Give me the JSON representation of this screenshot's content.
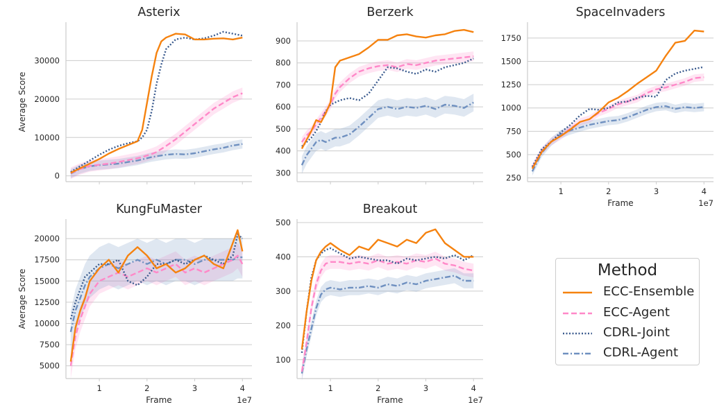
{
  "legend": {
    "title": "Method",
    "entries": [
      {
        "label": "ECC-Ensemble",
        "color": "#f5820f",
        "style": "solid"
      },
      {
        "label": "ECC-Agent",
        "color": "#ff88c8",
        "style": "dashed"
      },
      {
        "label": "CDRL-Joint",
        "color": "#3b5b8e",
        "style": "dotted"
      },
      {
        "label": "CDRL-Agent",
        "color": "#6f90c0",
        "style": "dashdot"
      }
    ]
  },
  "chart_data": [
    {
      "type": "line",
      "title": "Asterix",
      "xlabel": "",
      "ylabel": "Average Score",
      "xlim": [
        0.3,
        4.2
      ],
      "ylim": [
        -1500,
        40000
      ],
      "yticks": [
        0,
        10000,
        20000,
        30000
      ],
      "xticks": [
        1,
        2,
        3,
        4
      ],
      "show_xticklabels": false,
      "grid": "horizontal",
      "x": [
        0.4,
        0.6,
        0.8,
        1.0,
        1.2,
        1.4,
        1.6,
        1.8,
        1.9,
        2.0,
        2.1,
        2.2,
        2.3,
        2.4,
        2.6,
        2.8,
        3.0,
        3.2,
        3.4,
        3.6,
        3.8,
        4.0
      ],
      "series": [
        {
          "name": "ECC-Ensemble",
          "values": [
            800,
            2000,
            3200,
            4400,
            5800,
            7000,
            8000,
            9000,
            12000,
            19000,
            26000,
            32000,
            35000,
            36000,
            37000,
            36800,
            35500,
            35500,
            35700,
            35800,
            35500,
            36000
          ]
        },
        {
          "name": "ECC-Agent",
          "values": [
            700,
            1800,
            2600,
            2900,
            3200,
            3600,
            4100,
            4600,
            4900,
            5300,
            5700,
            6200,
            7000,
            7800,
            9500,
            11500,
            13500,
            15500,
            17500,
            19000,
            20500,
            21500
          ],
          "band": 1500
        },
        {
          "name": "CDRL-Joint",
          "values": [
            1000,
            2500,
            4000,
            5500,
            6800,
            7800,
            8500,
            9000,
            10000,
            12000,
            17000,
            24000,
            29000,
            33000,
            35500,
            36000,
            35500,
            35800,
            36500,
            37500,
            37000,
            36500
          ]
        },
        {
          "name": "CDRL-Agent",
          "values": [
            600,
            1800,
            2500,
            2800,
            3000,
            3200,
            3600,
            4000,
            4300,
            4600,
            4900,
            5100,
            5300,
            5500,
            5700,
            5600,
            5900,
            6400,
            6900,
            7300,
            7900,
            8300
          ],
          "band": 1200
        }
      ]
    },
    {
      "type": "line",
      "title": "Berzerk",
      "xlabel": "",
      "ylabel": "",
      "xlim": [
        0.3,
        4.2
      ],
      "ylim": [
        260,
        985
      ],
      "yticks": [
        300,
        400,
        500,
        600,
        700,
        800,
        900
      ],
      "xticks": [
        1,
        2,
        3,
        4
      ],
      "show_xticklabels": false,
      "grid": "horizontal",
      "x": [
        0.4,
        0.5,
        0.6,
        0.7,
        0.8,
        0.9,
        1.0,
        1.1,
        1.2,
        1.4,
        1.6,
        1.8,
        2.0,
        2.2,
        2.4,
        2.6,
        2.8,
        3.0,
        3.2,
        3.4,
        3.6,
        3.8,
        4.0
      ],
      "series": [
        {
          "name": "ECC-Ensemble",
          "values": [
            410,
            450,
            490,
            540,
            530,
            570,
            620,
            780,
            810,
            825,
            840,
            870,
            905,
            905,
            925,
            930,
            920,
            915,
            925,
            930,
            945,
            950,
            940
          ]
        },
        {
          "name": "ECC-Agent",
          "values": [
            440,
            470,
            490,
            520,
            550,
            580,
            610,
            660,
            690,
            730,
            760,
            775,
            785,
            790,
            780,
            795,
            790,
            800,
            810,
            815,
            820,
            825,
            830
          ],
          "band": 22
        },
        {
          "name": "CDRL-Joint",
          "values": [
            420,
            440,
            460,
            490,
            530,
            580,
            610,
            620,
            630,
            640,
            630,
            660,
            720,
            780,
            775,
            760,
            750,
            770,
            760,
            780,
            790,
            800,
            820
          ]
        },
        {
          "name": "CDRL-Agent",
          "values": [
            335,
            380,
            410,
            440,
            450,
            440,
            450,
            460,
            460,
            475,
            510,
            550,
            590,
            600,
            590,
            600,
            595,
            605,
            590,
            610,
            605,
            595,
            620
          ],
          "band": 40
        }
      ]
    },
    {
      "type": "line",
      "title": "SpaceInvaders",
      "xlabel": "Frame",
      "ylabel": "",
      "xlim": [
        0.3,
        4.2
      ],
      "ylim": [
        210,
        1920
      ],
      "yticks": [
        250,
        500,
        750,
        1000,
        1250,
        1500,
        1750
      ],
      "xticks": [
        1,
        2,
        3,
        4
      ],
      "show_xticklabels": true,
      "xtick_labels": [
        "1",
        "2",
        "3",
        "4"
      ],
      "x_offset_text": "1e7",
      "grid": "horizontal",
      "x": [
        0.4,
        0.6,
        0.8,
        1.0,
        1.2,
        1.4,
        1.6,
        1.8,
        2.0,
        2.2,
        2.4,
        2.6,
        2.8,
        3.0,
        3.2,
        3.4,
        3.6,
        3.8,
        4.0
      ],
      "series": [
        {
          "name": "ECC-Ensemble",
          "values": [
            350,
            530,
            640,
            700,
            770,
            850,
            880,
            960,
            1060,
            1110,
            1180,
            1260,
            1330,
            1400,
            1560,
            1700,
            1720,
            1830,
            1820
          ]
        },
        {
          "name": "ECC-Agent",
          "values": [
            360,
            540,
            640,
            700,
            780,
            850,
            880,
            950,
            990,
            1040,
            1070,
            1100,
            1160,
            1200,
            1220,
            1250,
            1280,
            1320,
            1330
          ],
          "band": 40
        },
        {
          "name": "CDRL-Joint",
          "values": [
            370,
            560,
            640,
            740,
            820,
            920,
            990,
            980,
            1000,
            1060,
            1070,
            1110,
            1130,
            1120,
            1300,
            1370,
            1400,
            1420,
            1440
          ]
        },
        {
          "name": "CDRL-Agent",
          "values": [
            320,
            520,
            640,
            720,
            760,
            790,
            820,
            840,
            860,
            870,
            900,
            940,
            980,
            1010,
            1020,
            990,
            1010,
            1000,
            1010
          ],
          "band": 45
        }
      ]
    },
    {
      "type": "line",
      "title": "KungFuMaster",
      "xlabel": "Frame",
      "ylabel": "Average Score",
      "xlim": [
        0.3,
        4.2
      ],
      "ylim": [
        3500,
        22300
      ],
      "yticks": [
        5000,
        7500,
        10000,
        12500,
        15000,
        17500,
        20000
      ],
      "xticks": [
        1,
        2,
        3,
        4
      ],
      "show_xticklabels": true,
      "xtick_labels": [
        "1",
        "2",
        "3",
        "4"
      ],
      "x_offset_text": "1e7",
      "grid": "horizontal",
      "x": [
        0.4,
        0.5,
        0.6,
        0.7,
        0.8,
        1.0,
        1.2,
        1.4,
        1.6,
        1.8,
        2.0,
        2.2,
        2.4,
        2.6,
        2.8,
        3.0,
        3.2,
        3.4,
        3.6,
        3.8,
        3.9,
        4.0
      ],
      "series": [
        {
          "name": "ECC-Ensemble",
          "values": [
            5500,
            9500,
            11500,
            13000,
            15000,
            16500,
            17500,
            16000,
            18000,
            19000,
            18000,
            16500,
            17000,
            16000,
            16500,
            17500,
            18000,
            17000,
            16500,
            19500,
            21000,
            18500
          ]
        },
        {
          "name": "ECC-Agent",
          "values": [
            5000,
            8500,
            10500,
            12000,
            13500,
            15000,
            15500,
            16000,
            15500,
            16000,
            16500,
            16000,
            16500,
            17000,
            16000,
            16500,
            16000,
            16500,
            17000,
            17500,
            18000,
            17000
          ],
          "band": 1500
        },
        {
          "name": "CDRL-Joint",
          "values": [
            10500,
            12500,
            14000,
            15500,
            16000,
            17000,
            17000,
            17500,
            15000,
            14500,
            15500,
            17000,
            17000,
            17500,
            17000,
            17500,
            18000,
            17500,
            17000,
            18000,
            20500,
            20000
          ]
        },
        {
          "name": "CDRL-Agent",
          "values": [
            9000,
            11500,
            13000,
            14500,
            15500,
            16500,
            17000,
            16500,
            17000,
            17500,
            17000,
            17500,
            17000,
            17500,
            17500,
            17000,
            17500,
            17500,
            17500,
            17500,
            17800,
            17800
          ],
          "band": 2500
        }
      ]
    },
    {
      "type": "line",
      "title": "Breakout",
      "xlabel": "Frame",
      "ylabel": "",
      "xlim": [
        0.3,
        4.2
      ],
      "ylim": [
        45,
        510
      ],
      "yticks": [
        100,
        200,
        300,
        400,
        500
      ],
      "xticks": [
        1,
        2,
        3,
        4
      ],
      "show_xticklabels": true,
      "xtick_labels": [
        "1",
        "2",
        "3",
        "4"
      ],
      "x_offset_text": "1e7",
      "grid": "horizontal",
      "x": [
        0.4,
        0.5,
        0.6,
        0.7,
        0.8,
        0.9,
        1.0,
        1.2,
        1.4,
        1.6,
        1.8,
        2.0,
        2.2,
        2.4,
        2.6,
        2.8,
        3.0,
        3.2,
        3.4,
        3.6,
        3.8,
        4.0
      ],
      "series": [
        {
          "name": "ECC-Ensemble",
          "values": [
            130,
            240,
            330,
            390,
            415,
            430,
            440,
            420,
            405,
            430,
            420,
            450,
            440,
            430,
            450,
            440,
            470,
            480,
            440,
            420,
            400,
            400
          ]
        },
        {
          "name": "ECC-Agent",
          "values": [
            65,
            150,
            250,
            320,
            360,
            380,
            385,
            385,
            380,
            385,
            380,
            390,
            380,
            385,
            380,
            390,
            385,
            395,
            380,
            375,
            365,
            360
          ],
          "band": 20
        },
        {
          "name": "CDRL-Joint",
          "values": [
            120,
            240,
            340,
            390,
            410,
            420,
            425,
            410,
            395,
            400,
            395,
            390,
            390,
            380,
            395,
            390,
            395,
            400,
            395,
            405,
            390,
            405
          ]
        },
        {
          "name": "CDRL-Agent",
          "values": [
            60,
            130,
            190,
            250,
            290,
            305,
            310,
            305,
            310,
            310,
            315,
            310,
            320,
            315,
            325,
            320,
            330,
            335,
            340,
            345,
            330,
            330
          ],
          "band": 22
        }
      ]
    }
  ]
}
